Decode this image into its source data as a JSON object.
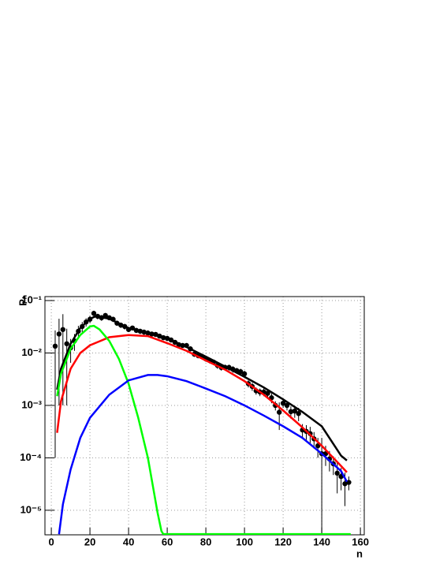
{
  "chart_data": {
    "type": "line",
    "xlabel": "n",
    "ylabel": "Pₙ",
    "xlim": [
      -3.3,
      162
    ],
    "ylim": [
      3.4e-06,
      0.119
    ],
    "ylog": true,
    "grid": true,
    "xticks": [
      0,
      20,
      40,
      60,
      80,
      100,
      120,
      140,
      160
    ],
    "yticks": [
      {
        "value": 0.1,
        "label": "10⁻¹"
      },
      {
        "value": 0.01,
        "label": "10⁻²"
      },
      {
        "value": 0.001,
        "label": "10⁻³"
      },
      {
        "value": 0.0001,
        "label": "10⁻⁴"
      },
      {
        "value": 1e-05,
        "label": "10⁻⁵"
      }
    ],
    "series": [
      {
        "type": "errorbar",
        "color": "#000000",
        "x": [
          2,
          4,
          6,
          8,
          10,
          12,
          14,
          16,
          18,
          20,
          22,
          24,
          26,
          28,
          30,
          32,
          34,
          36,
          38,
          40,
          42,
          44,
          46,
          48,
          50,
          52,
          54,
          56,
          58,
          60,
          62,
          64,
          66,
          68,
          70,
          72,
          74,
          76,
          78,
          80,
          82,
          84,
          86,
          88,
          90,
          92,
          94,
          96,
          98,
          100,
          102,
          104,
          106,
          108,
          110,
          112,
          114,
          116,
          118,
          120,
          122,
          124,
          126,
          128,
          130,
          132,
          134,
          136,
          138,
          140,
          142,
          144,
          146,
          148,
          150,
          152,
          154
        ],
        "values": [
          0.0135,
          0.023,
          0.028,
          0.015,
          0.0125,
          0.017,
          0.026,
          0.032,
          0.039,
          0.044,
          0.057,
          0.05,
          0.047,
          0.052,
          0.047,
          0.044,
          0.037,
          0.034,
          0.032,
          0.028,
          0.03,
          0.027,
          0.026,
          0.025,
          0.024,
          0.023,
          0.0226,
          0.021,
          0.0196,
          0.019,
          0.0177,
          0.016,
          0.0144,
          0.0139,
          0.0139,
          0.012,
          0.0095,
          0.0089,
          0.0086,
          0.0077,
          0.0072,
          0.0067,
          0.0058,
          0.0053,
          0.0053,
          0.0053,
          0.0049,
          0.0046,
          0.0044,
          0.004,
          0.0026,
          0.0023,
          0.0019,
          0.0018,
          0.0018,
          0.0017,
          0.0014,
          0.001,
          0.00074,
          0.0011,
          0.001,
          0.00076,
          0.00078,
          0.0007,
          0.00034,
          0.00032,
          0.00029,
          0.00023,
          0.00017,
          0.00012,
          0.00012,
          9.5e-05,
          7.7e-05,
          5.1e-05,
          4.4e-05,
          3.2e-05,
          3.4e-05
        ],
        "errors": [
          0.0134,
          0.022,
          0.027,
          0.014,
          0.006,
          0.006,
          0.007,
          0.007,
          0.007,
          0.007,
          0.007,
          0.006,
          0.006,
          0.006,
          0.005,
          0.005,
          0.004,
          0.004,
          0.004,
          0.003,
          0.003,
          0.003,
          0.003,
          0.003,
          0.003,
          0.002,
          0.002,
          0.002,
          0.002,
          0.002,
          0.0018,
          0.0016,
          0.0015,
          0.0014,
          0.0014,
          0.0013,
          0.0011,
          0.001,
          0.001,
          0.0009,
          0.0009,
          0.0008,
          0.0008,
          0.0007,
          0.0007,
          0.0007,
          0.0007,
          0.0006,
          0.0006,
          0.0006,
          0.0004,
          0.0004,
          0.0003,
          0.0003,
          0.0003,
          0.0003,
          0.0003,
          0.0002,
          0.0004,
          0.0002,
          0.0002,
          0.0002,
          0.0002,
          0.0002,
          0.0001,
          0.0001,
          0.0001,
          8e-05,
          7e-05,
          0.00012,
          5e-05,
          4e-05,
          3e-05,
          3e-05,
          2e-05,
          2e-05,
          1e-05
        ]
      },
      {
        "type": "line",
        "color": "#000000",
        "x": [
          3,
          5,
          10,
          15,
          20,
          23,
          30,
          40,
          50,
          60,
          70,
          80,
          90,
          100,
          110,
          120,
          130,
          140,
          150,
          153
        ],
        "values": [
          0.002,
          0.005,
          0.015,
          0.03,
          0.045,
          0.05,
          0.045,
          0.03,
          0.024,
          0.019,
          0.013,
          0.0085,
          0.0055,
          0.0035,
          0.0022,
          0.0013,
          0.00075,
          0.0004,
          0.00011,
          8.9e-05
        ]
      },
      {
        "type": "line",
        "color": "#ff0000",
        "x": [
          3,
          5,
          10,
          15,
          20,
          30,
          40,
          50,
          60,
          70,
          80,
          90,
          100,
          110,
          120,
          130,
          140,
          150,
          153
        ],
        "values": [
          0.0003,
          0.0012,
          0.005,
          0.01,
          0.014,
          0.02,
          0.022,
          0.021,
          0.0154,
          0.011,
          0.0072,
          0.0048,
          0.0029,
          0.0016,
          0.0008,
          0.00038,
          0.00017,
          7e-05,
          5.3e-05
        ]
      },
      {
        "type": "line",
        "color": "#00ff00",
        "x": [
          3,
          5,
          10,
          15,
          20,
          22,
          25,
          30,
          35,
          40,
          45,
          50,
          55,
          57,
          58,
          155
        ],
        "values": [
          0.0015,
          0.004,
          0.012,
          0.022,
          0.032,
          0.033,
          0.028,
          0.017,
          0.0077,
          0.0026,
          0.00058,
          0.0001,
          9e-06,
          4e-06,
          3.5e-06,
          3.5e-06
        ]
      },
      {
        "type": "line",
        "color": "#0000ff",
        "x": [
          4,
          6,
          10,
          15,
          20,
          30,
          40,
          50,
          55,
          60,
          70,
          80,
          90,
          100,
          110,
          120,
          130,
          140,
          150,
          153
        ],
        "values": [
          3.5e-06,
          1.3e-05,
          6e-05,
          0.00024,
          0.00058,
          0.0016,
          0.003,
          0.0038,
          0.0038,
          0.0036,
          0.0029,
          0.0021,
          0.0015,
          0.001,
          0.00064,
          0.0004,
          0.00024,
          0.00012,
          5.6e-05,
          3.5e-05
        ]
      }
    ]
  }
}
